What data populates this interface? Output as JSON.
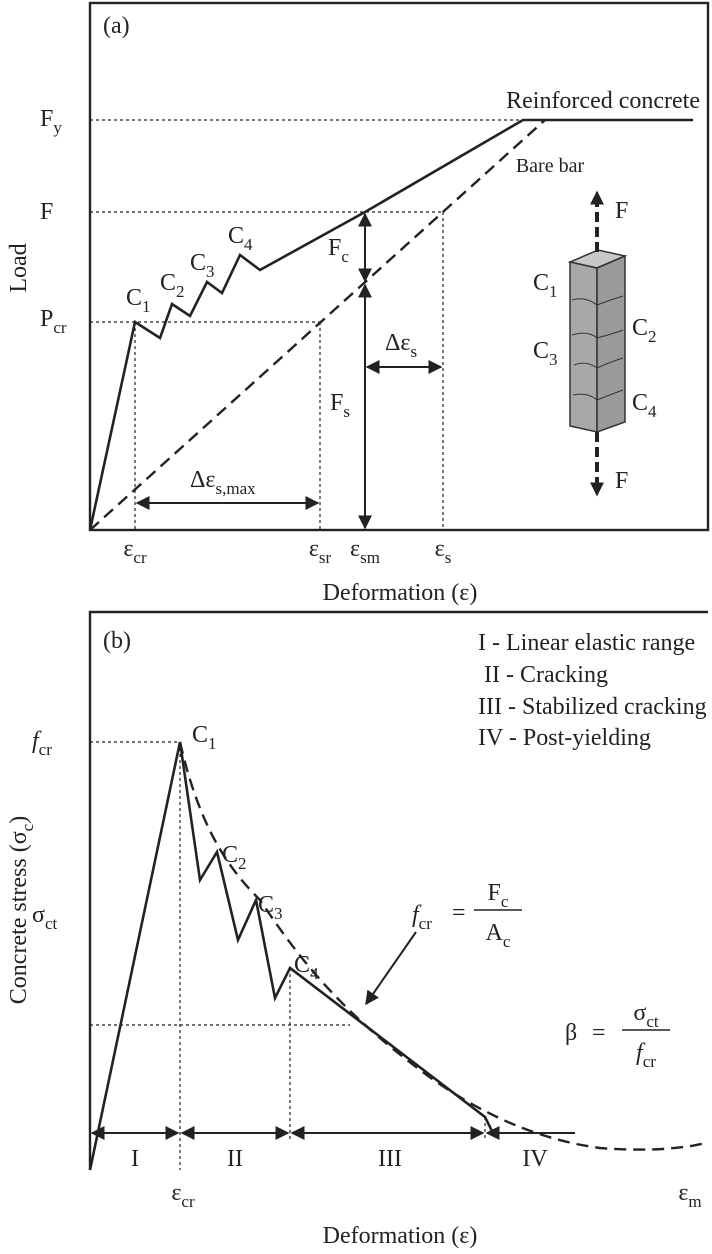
{
  "panel_a": {
    "tag": "(a)",
    "y_axis_title": "Load",
    "x_axis_title": "Deformation (ε)",
    "curves": [
      "Reinforced concrete",
      "Bare bar"
    ],
    "load_levels": [
      {
        "symbol": "F",
        "subscript": "y"
      },
      {
        "symbol": "F"
      },
      {
        "symbol": "P",
        "subscript": "cr"
      }
    ],
    "strains": [
      {
        "symbol": "ε",
        "subscript": "cr"
      },
      {
        "symbol": "ε",
        "subscript": "sr"
      },
      {
        "symbol": "ε",
        "subscript": "sm"
      },
      {
        "symbol": "ε",
        "subscript": "s"
      }
    ],
    "crack_points": [
      {
        "symbol": "C",
        "subscript": "1"
      },
      {
        "symbol": "C",
        "subscript": "2"
      },
      {
        "symbol": "C",
        "subscript": "3"
      },
      {
        "symbol": "C",
        "subscript": "4"
      }
    ],
    "forces": [
      {
        "symbol": "F",
        "subscript": "c"
      },
      {
        "symbol": "F",
        "subscript": "s"
      }
    ],
    "strain_differences": [
      {
        "symbol": "Δε",
        "subscript": "s"
      },
      {
        "symbol": "Δε",
        "subscript": "s,max"
      }
    ],
    "specimen": {
      "force": "F",
      "cracks": [
        {
          "symbol": "C",
          "subscript": "1"
        },
        {
          "symbol": "C",
          "subscript": "2"
        },
        {
          "symbol": "C",
          "subscript": "3"
        },
        {
          "symbol": "C",
          "subscript": "4"
        }
      ]
    }
  },
  "panel_b": {
    "tag": "(b)",
    "y_axis_title": {
      "symbol": "Concrete stress (σ",
      "subscript": "c",
      "suffix": ")"
    },
    "x_axis_title": "Deformation (ε)",
    "legend": [
      "I  - Linear elastic range",
      "II - Cracking",
      "III - Stabilized cracking",
      "IV - Post-yielding"
    ],
    "ranges": [
      "I",
      "II",
      "III",
      "IV"
    ],
    "stress_levels": [
      {
        "symbol": "f",
        "subscript": "cr"
      },
      {
        "symbol": "σ",
        "subscript": "ct"
      }
    ],
    "crack_points": [
      {
        "symbol": "C",
        "subscript": "1"
      },
      {
        "symbol": "C",
        "subscript": "2"
      },
      {
        "symbol": "C",
        "subscript": "3"
      },
      {
        "symbol": "C",
        "subscript": "4"
      }
    ],
    "strains": [
      {
        "symbol": "ε",
        "subscript": "cr"
      },
      {
        "symbol": "ε",
        "subscript": "m"
      }
    ],
    "formula_1": {
      "lhs": {
        "symbol": "f",
        "subscript": "cr"
      },
      "equals": "=",
      "numerator": {
        "symbol": "F",
        "subscript": "c"
      },
      "denominator": {
        "symbol": "A",
        "subscript": "c"
      }
    },
    "formula_2": {
      "lhs": "β",
      "equals": "=",
      "numerator": {
        "symbol": "σ",
        "subscript": "ct"
      },
      "denominator": {
        "symbol": "f",
        "subscript": "cr"
      }
    }
  }
}
